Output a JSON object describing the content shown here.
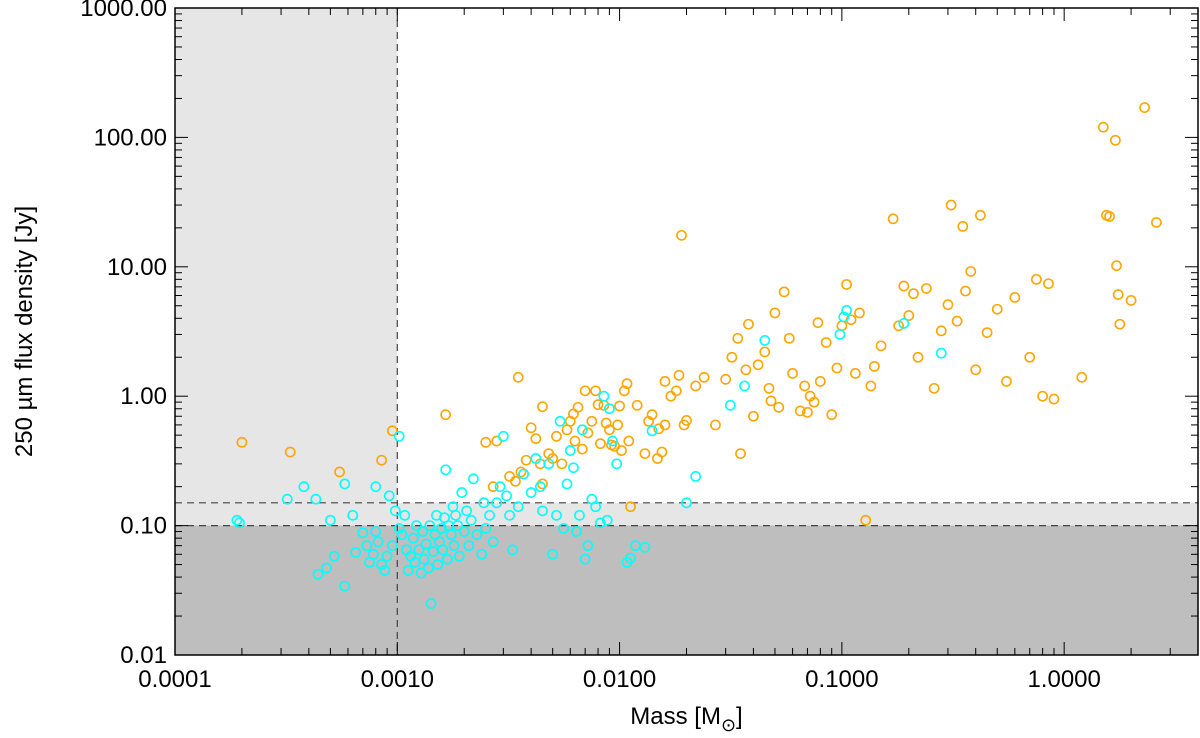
{
  "chart_data": {
    "type": "scatter",
    "xlabel": "Mass [M",
    "xlabel_sub": "⊙",
    "xlabel_close": "]",
    "ylabel": "250 µm flux density [Jy]",
    "x_scale": "log",
    "y_scale": "log",
    "xlim": [
      0.0001,
      4.0
    ],
    "ylim": [
      0.01,
      1000
    ],
    "x_ticks": [
      {
        "value": 0.0001,
        "label": "0.0001"
      },
      {
        "value": 0.001,
        "label": "0.0010"
      },
      {
        "value": 0.01,
        "label": "0.0100"
      },
      {
        "value": 0.1,
        "label": "0.1000"
      },
      {
        "value": 1.0,
        "label": "1.0000"
      }
    ],
    "y_ticks": [
      {
        "value": 0.01,
        "label": "0.01"
      },
      {
        "value": 0.1,
        "label": "0.10"
      },
      {
        "value": 1,
        "label": "1.00"
      },
      {
        "value": 10,
        "label": "10.00"
      },
      {
        "value": 100,
        "label": "100.00"
      },
      {
        "value": 1000,
        "label": "1000.00"
      }
    ],
    "shaded_regions": [
      {
        "x": [
          0.0001,
          0.001
        ],
        "y": [
          0.01,
          1000
        ],
        "color": "#e6e6e6"
      },
      {
        "x": [
          0.0001,
          4.0
        ],
        "y": [
          0.01,
          0.15
        ],
        "color": "#e6e6e6"
      },
      {
        "x": [
          0.0001,
          4.0
        ],
        "y": [
          0.01,
          0.1
        ],
        "color": "#bebebe"
      }
    ],
    "reference_lines": [
      {
        "orientation": "vertical",
        "value": 0.001,
        "style": "dashed"
      },
      {
        "orientation": "horizontal",
        "value": 0.15,
        "style": "dashed"
      },
      {
        "orientation": "horizontal",
        "value": 0.1,
        "style": "dashed"
      }
    ],
    "series": [
      {
        "color": "#ffa500",
        "marker": "open-circle",
        "points": [
          [
            0.0002,
            0.44
          ],
          [
            0.00033,
            0.37
          ],
          [
            0.00055,
            0.26
          ],
          [
            0.00085,
            0.32
          ],
          [
            0.00095,
            0.54
          ],
          [
            0.00165,
            0.72
          ],
          [
            0.0025,
            0.44
          ],
          [
            0.0028,
            0.45
          ],
          [
            0.0027,
            0.2
          ],
          [
            0.0032,
            0.24
          ],
          [
            0.0034,
            0.22
          ],
          [
            0.0035,
            1.4
          ],
          [
            0.0036,
            0.26
          ],
          [
            0.0037,
            0.25
          ],
          [
            0.0038,
            0.32
          ],
          [
            0.004,
            0.57
          ],
          [
            0.0042,
            0.47
          ],
          [
            0.0044,
            0.3
          ],
          [
            0.0045,
            0.21
          ],
          [
            0.0045,
            0.83
          ],
          [
            0.0048,
            0.36
          ],
          [
            0.005,
            0.33
          ],
          [
            0.0052,
            0.49
          ],
          [
            0.0055,
            0.3
          ],
          [
            0.0058,
            0.55
          ],
          [
            0.006,
            0.64
          ],
          [
            0.0062,
            0.73
          ],
          [
            0.0063,
            0.45
          ],
          [
            0.0065,
            0.82
          ],
          [
            0.0068,
            0.39
          ],
          [
            0.007,
            1.1
          ],
          [
            0.0072,
            0.52
          ],
          [
            0.0075,
            0.64
          ],
          [
            0.0078,
            1.1
          ],
          [
            0.008,
            0.86
          ],
          [
            0.0082,
            0.43
          ],
          [
            0.0085,
            0.85
          ],
          [
            0.0087,
            0.62
          ],
          [
            0.009,
            0.55
          ],
          [
            0.0092,
            0.42
          ],
          [
            0.0095,
            0.41
          ],
          [
            0.0098,
            0.6
          ],
          [
            0.01,
            0.84
          ],
          [
            0.0102,
            0.38
          ],
          [
            0.0105,
            1.1
          ],
          [
            0.0108,
            1.25
          ],
          [
            0.011,
            0.45
          ],
          [
            0.0112,
            0.14
          ],
          [
            0.012,
            0.85
          ],
          [
            0.013,
            0.36
          ],
          [
            0.0135,
            0.64
          ],
          [
            0.014,
            0.72
          ],
          [
            0.015,
            0.56
          ],
          [
            0.0148,
            0.33
          ],
          [
            0.0155,
            0.37
          ],
          [
            0.016,
            0.6
          ],
          [
            0.016,
            1.3
          ],
          [
            0.017,
            1.0
          ],
          [
            0.018,
            1.1
          ],
          [
            0.0185,
            1.45
          ],
          [
            0.019,
            17.5
          ],
          [
            0.0195,
            0.6
          ],
          [
            0.02,
            0.65
          ],
          [
            0.022,
            1.2
          ],
          [
            0.024,
            1.4
          ],
          [
            0.027,
            0.6
          ],
          [
            0.03,
            1.35
          ],
          [
            0.032,
            2.0
          ],
          [
            0.034,
            2.8
          ],
          [
            0.035,
            0.36
          ],
          [
            0.037,
            1.6
          ],
          [
            0.038,
            3.6
          ],
          [
            0.04,
            0.7
          ],
          [
            0.042,
            1.75
          ],
          [
            0.045,
            2.2
          ],
          [
            0.047,
            1.15
          ],
          [
            0.048,
            0.92
          ],
          [
            0.05,
            4.4
          ],
          [
            0.052,
            0.82
          ],
          [
            0.055,
            6.4
          ],
          [
            0.058,
            2.8
          ],
          [
            0.06,
            1.5
          ],
          [
            0.065,
            0.77
          ],
          [
            0.068,
            1.2
          ],
          [
            0.07,
            0.75
          ],
          [
            0.072,
            1.0
          ],
          [
            0.075,
            0.9
          ],
          [
            0.078,
            3.7
          ],
          [
            0.08,
            1.3
          ],
          [
            0.085,
            2.6
          ],
          [
            0.09,
            0.72
          ],
          [
            0.095,
            1.65
          ],
          [
            0.1,
            3.5
          ],
          [
            0.105,
            7.3
          ],
          [
            0.11,
            3.9
          ],
          [
            0.115,
            1.5
          ],
          [
            0.12,
            4.4
          ],
          [
            0.128,
            0.11
          ],
          [
            0.135,
            1.2
          ],
          [
            0.14,
            1.7
          ],
          [
            0.15,
            2.45
          ],
          [
            0.17,
            23.5
          ],
          [
            0.18,
            3.5
          ],
          [
            0.19,
            7.1
          ],
          [
            0.2,
            4.2
          ],
          [
            0.21,
            6.2
          ],
          [
            0.22,
            2.0
          ],
          [
            0.24,
            6.8
          ],
          [
            0.26,
            1.15
          ],
          [
            0.28,
            3.2
          ],
          [
            0.3,
            5.1
          ],
          [
            0.31,
            30.0
          ],
          [
            0.33,
            3.8
          ],
          [
            0.35,
            20.5
          ],
          [
            0.36,
            6.5
          ],
          [
            0.38,
            9.2
          ],
          [
            0.4,
            1.6
          ],
          [
            0.42,
            25.0
          ],
          [
            0.45,
            3.1
          ],
          [
            0.5,
            4.7
          ],
          [
            0.55,
            1.3
          ],
          [
            0.6,
            5.8
          ],
          [
            0.7,
            2.0
          ],
          [
            0.75,
            8.0
          ],
          [
            0.8,
            1.0
          ],
          [
            0.85,
            7.4
          ],
          [
            0.9,
            0.95
          ],
          [
            1.2,
            1.4
          ],
          [
            1.5,
            120.0
          ],
          [
            1.55,
            25.0
          ],
          [
            1.6,
            24.5
          ],
          [
            1.7,
            95.0
          ],
          [
            1.72,
            10.2
          ],
          [
            1.75,
            6.1
          ],
          [
            1.78,
            3.6
          ],
          [
            2.0,
            5.5
          ],
          [
            2.3,
            170.0
          ],
          [
            2.6,
            22.0
          ]
        ]
      },
      {
        "color": "#00ffff",
        "marker": "open-circle",
        "points": [
          [
            0.00019,
            0.11
          ],
          [
            0.000195,
            0.105
          ],
          [
            0.00032,
            0.16
          ],
          [
            0.00038,
            0.2
          ],
          [
            0.00043,
            0.16
          ],
          [
            0.00044,
            0.042
          ],
          [
            0.00048,
            0.047
          ],
          [
            0.0005,
            0.11
          ],
          [
            0.00052,
            0.058
          ],
          [
            0.00058,
            0.21
          ],
          [
            0.00058,
            0.034
          ],
          [
            0.00063,
            0.12
          ],
          [
            0.00065,
            0.062
          ],
          [
            0.0007,
            0.088
          ],
          [
            0.00073,
            0.07
          ],
          [
            0.00075,
            0.052
          ],
          [
            0.00078,
            0.06
          ],
          [
            0.0008,
            0.2
          ],
          [
            0.0008,
            0.09
          ],
          [
            0.00082,
            0.075
          ],
          [
            0.00085,
            0.05
          ],
          [
            0.00088,
            0.045
          ],
          [
            0.0009,
            0.058
          ],
          [
            0.00092,
            0.17
          ],
          [
            0.00095,
            0.07
          ],
          [
            0.00098,
            0.13
          ],
          [
            0.00102,
            0.49
          ],
          [
            0.00102,
            0.095
          ],
          [
            0.00105,
            0.085
          ],
          [
            0.00108,
            0.12
          ],
          [
            0.0011,
            0.065
          ],
          [
            0.00112,
            0.045
          ],
          [
            0.00115,
            0.058
          ],
          [
            0.00118,
            0.08
          ],
          [
            0.0012,
            0.052
          ],
          [
            0.00122,
            0.1
          ],
          [
            0.00125,
            0.065
          ],
          [
            0.00128,
            0.043
          ],
          [
            0.0013,
            0.09
          ],
          [
            0.00132,
            0.055
          ],
          [
            0.00135,
            0.072
          ],
          [
            0.00138,
            0.047
          ],
          [
            0.0014,
            0.1
          ],
          [
            0.00142,
            0.025
          ],
          [
            0.00145,
            0.063
          ],
          [
            0.00148,
            0.085
          ],
          [
            0.0015,
            0.12
          ],
          [
            0.00152,
            0.05
          ],
          [
            0.00155,
            0.075
          ],
          [
            0.00158,
            0.095
          ],
          [
            0.0016,
            0.065
          ],
          [
            0.00163,
            0.115
          ],
          [
            0.00165,
            0.27
          ],
          [
            0.00168,
            0.055
          ],
          [
            0.0017,
            0.1
          ],
          [
            0.00175,
            0.085
          ],
          [
            0.00178,
            0.14
          ],
          [
            0.0018,
            0.07
          ],
          [
            0.00183,
            0.12
          ],
          [
            0.00187,
            0.1
          ],
          [
            0.0019,
            0.058
          ],
          [
            0.00195,
            0.18
          ],
          [
            0.002,
            0.09
          ],
          [
            0.00205,
            0.13
          ],
          [
            0.0021,
            0.07
          ],
          [
            0.00215,
            0.11
          ],
          [
            0.0022,
            0.23
          ],
          [
            0.00228,
            0.085
          ],
          [
            0.0024,
            0.06
          ],
          [
            0.00245,
            0.15
          ],
          [
            0.0025,
            0.095
          ],
          [
            0.0026,
            0.12
          ],
          [
            0.0027,
            0.075
          ],
          [
            0.0028,
            0.15
          ],
          [
            0.0029,
            0.2
          ],
          [
            0.003,
            0.49
          ],
          [
            0.0031,
            0.17
          ],
          [
            0.0032,
            0.12
          ],
          [
            0.0033,
            0.065
          ],
          [
            0.0035,
            0.14
          ],
          [
            0.0037,
            0.25
          ],
          [
            0.004,
            0.18
          ],
          [
            0.0042,
            0.33
          ],
          [
            0.0044,
            0.2
          ],
          [
            0.0045,
            0.13
          ],
          [
            0.0048,
            0.3
          ],
          [
            0.005,
            0.06
          ],
          [
            0.0052,
            0.12
          ],
          [
            0.0054,
            0.64
          ],
          [
            0.0056,
            0.095
          ],
          [
            0.0058,
            0.21
          ],
          [
            0.006,
            0.38
          ],
          [
            0.0062,
            0.28
          ],
          [
            0.0064,
            0.09
          ],
          [
            0.0066,
            0.12
          ],
          [
            0.0068,
            0.55
          ],
          [
            0.007,
            0.055
          ],
          [
            0.0072,
            0.07
          ],
          [
            0.0075,
            0.16
          ],
          [
            0.0078,
            0.14
          ],
          [
            0.0082,
            0.105
          ],
          [
            0.0085,
            1.0
          ],
          [
            0.0088,
            0.11
          ],
          [
            0.009,
            0.8
          ],
          [
            0.0093,
            0.45
          ],
          [
            0.0097,
            0.3
          ],
          [
            0.0108,
            0.052
          ],
          [
            0.0112,
            0.056
          ],
          [
            0.0118,
            0.07
          ],
          [
            0.013,
            0.068
          ],
          [
            0.014,
            0.54
          ],
          [
            0.02,
            0.15
          ],
          [
            0.022,
            0.24
          ],
          [
            0.0315,
            0.85
          ],
          [
            0.0365,
            1.2
          ],
          [
            0.045,
            2.7
          ],
          [
            0.098,
            3.0
          ],
          [
            0.102,
            4.1
          ],
          [
            0.105,
            4.6
          ],
          [
            0.19,
            3.65
          ],
          [
            0.28,
            2.15
          ]
        ]
      }
    ]
  }
}
